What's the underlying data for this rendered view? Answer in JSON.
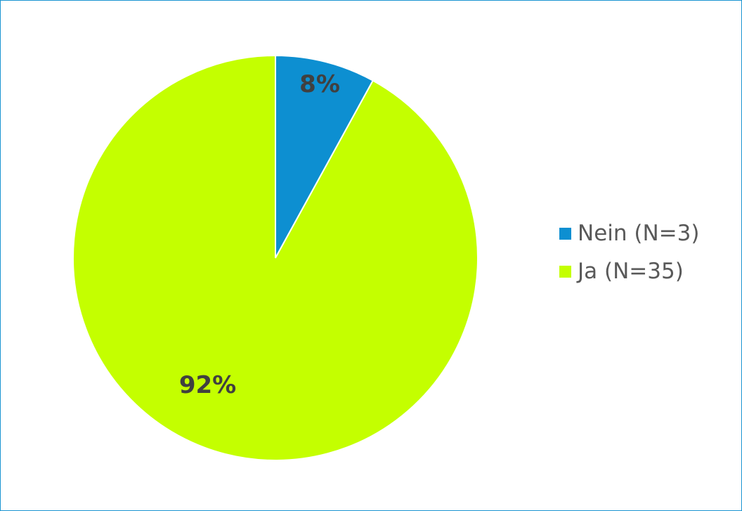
{
  "chart_data": {
    "type": "pie",
    "series": [
      {
        "values": [
          8,
          92
        ],
        "counts": [
          3,
          35
        ],
        "categories": [
          "Nein (N=3)",
          "Ja (N=35)"
        ],
        "data_labels": [
          "8%",
          "92%"
        ],
        "colors": [
          "#0d8fd1",
          "#c4ff00"
        ]
      }
    ],
    "legend": {
      "position": "right",
      "items": [
        {
          "label": "Nein (N=3)",
          "color": "#0d8fd1"
        },
        {
          "label": "Ja (N=35)",
          "color": "#c4ff00"
        }
      ]
    },
    "start_angle": "12 o'clock",
    "direction": "clockwise"
  }
}
